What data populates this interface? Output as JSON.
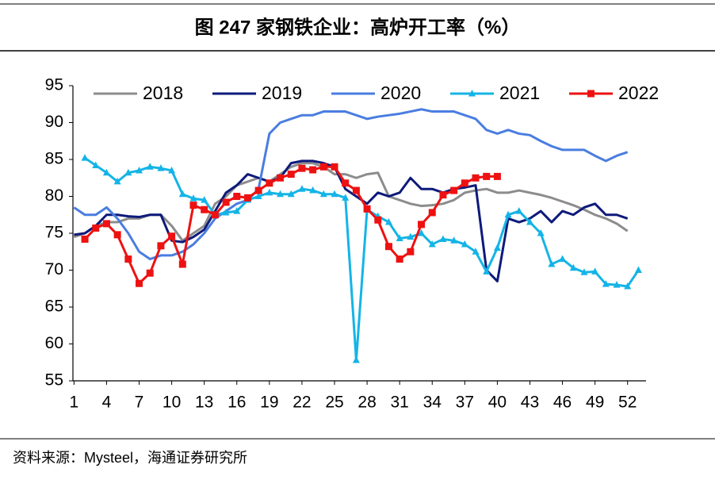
{
  "chart_data": {
    "type": "line",
    "title": "图  247 家钢铁企业：高炉开工率（%）",
    "source": "资料来源：Mysteel，海通证券研究所",
    "x": [
      1,
      2,
      3,
      4,
      5,
      6,
      7,
      8,
      9,
      10,
      11,
      12,
      13,
      14,
      15,
      16,
      17,
      18,
      19,
      20,
      21,
      22,
      23,
      24,
      25,
      26,
      27,
      28,
      29,
      30,
      31,
      32,
      33,
      34,
      35,
      36,
      37,
      38,
      39,
      40,
      41,
      42,
      43,
      44,
      45,
      46,
      47,
      48,
      49,
      50,
      51,
      52,
      53
    ],
    "xlim": [
      0.9,
      53.7
    ],
    "xticks": [
      1,
      4,
      7,
      10,
      13,
      16,
      19,
      22,
      25,
      28,
      31,
      34,
      37,
      40,
      43,
      46,
      49,
      52
    ],
    "ylim": [
      55,
      95
    ],
    "yticks": [
      55,
      60,
      65,
      70,
      75,
      80,
      85,
      90,
      95
    ],
    "grid": false,
    "legend": "top",
    "series": [
      {
        "name": "2018",
        "color": "#8c8c8c",
        "marker": "none",
        "values": [
          74.5,
          75,
          76,
          76.5,
          76.5,
          77,
          77,
          77.5,
          77.5,
          76,
          74,
          75,
          76,
          79,
          80,
          81.5,
          82,
          82.5,
          82,
          83,
          84,
          84.5,
          84.5,
          84,
          83,
          83,
          82.5,
          83,
          83.2,
          80,
          79.5,
          79,
          78.7,
          78.8,
          79,
          79.5,
          80.5,
          80.8,
          81,
          80.5,
          80.5,
          80.8,
          80.5,
          80.2,
          79.8,
          79.3,
          78.8,
          78.2,
          77.5,
          77,
          76.3,
          75.3,
          null
        ]
      },
      {
        "name": "2019",
        "color": "#0d1a7a",
        "marker": "none",
        "values": [
          74.8,
          75,
          76,
          77.5,
          77.5,
          77.3,
          77.2,
          77.5,
          77.5,
          74,
          73.8,
          74.5,
          75.5,
          78,
          80.5,
          81.5,
          83,
          82.5,
          82,
          82.5,
          84.5,
          84.8,
          84.8,
          84.5,
          84,
          81,
          80,
          79,
          80.5,
          80,
          80.5,
          82.5,
          81,
          81,
          80.5,
          81,
          81.2,
          81.5,
          70,
          68.5,
          77,
          76.5,
          77,
          78,
          76.5,
          78,
          77.5,
          78.5,
          79,
          77.5,
          77.5,
          77,
          null
        ]
      },
      {
        "name": "2020",
        "color": "#4a7de0",
        "marker": "none",
        "values": [
          78.5,
          77.5,
          77.5,
          78.5,
          77,
          75,
          72.5,
          71.5,
          72,
          72,
          72.5,
          73.5,
          75,
          77,
          78,
          79,
          79.5,
          81,
          88.5,
          90,
          90.5,
          91,
          91,
          91.5,
          91.5,
          91.5,
          91,
          90.5,
          90.8,
          91,
          91.2,
          91.5,
          91.8,
          91.5,
          91.5,
          91.5,
          91,
          90.5,
          89,
          88.5,
          89,
          88.5,
          88.3,
          87.5,
          86.8,
          86.3,
          86.3,
          86.3,
          85.5,
          84.8,
          85.5,
          86,
          null
        ]
      },
      {
        "name": "2021",
        "color": "#14b4e6",
        "marker": "triangle",
        "values": [
          null,
          85.2,
          84.2,
          83.2,
          82,
          83.2,
          83.5,
          84,
          83.8,
          83.5,
          80.3,
          79.7,
          79.5,
          77.5,
          77.8,
          78,
          79.5,
          80,
          80.5,
          80.3,
          80.3,
          81,
          80.8,
          80.3,
          80.3,
          79.8,
          57.8,
          78.2,
          77.3,
          76.5,
          74.3,
          74.5,
          75,
          73.5,
          74.2,
          74,
          73.5,
          72.5,
          69.8,
          73,
          77.5,
          78,
          76.5,
          75,
          70.8,
          71.5,
          70.3,
          69.7,
          69.8,
          68.1,
          68,
          67.8,
          70
        ]
      },
      {
        "name": "2022",
        "color": "#ee1111",
        "marker": "square",
        "values": [
          null,
          74.2,
          75.7,
          76.3,
          74.8,
          71.5,
          68.2,
          69.6,
          73.3,
          74.6,
          70.8,
          78.8,
          78.2,
          77.5,
          79.2,
          80,
          79.8,
          80.8,
          81.8,
          82.5,
          83,
          83.8,
          83.6,
          84,
          84,
          81.8,
          80.8,
          78.3,
          76.8,
          73.2,
          71.5,
          72.5,
          76.2,
          77.8,
          80.2,
          80.8,
          81.8,
          82.5,
          82.7,
          82.7,
          null,
          null,
          null,
          null,
          null,
          null,
          null,
          null,
          null,
          null,
          null,
          null,
          null
        ]
      }
    ]
  }
}
